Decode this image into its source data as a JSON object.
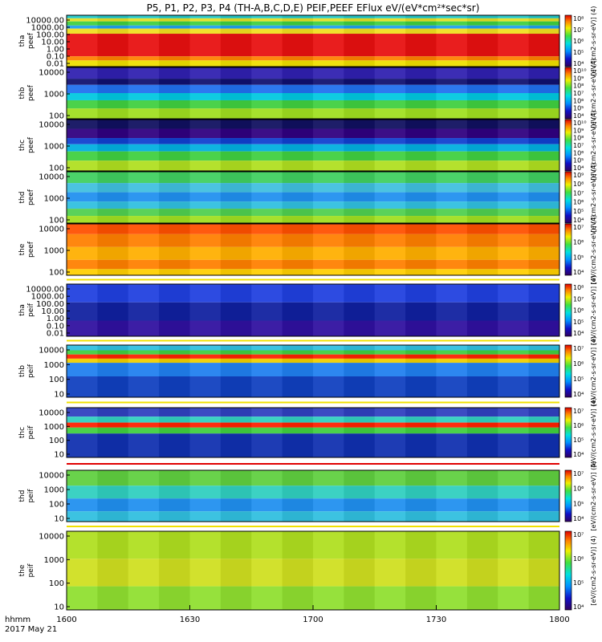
{
  "chart_data": {
    "type": "heatmap",
    "title": "P5, P1, P2, P3, P4 (TH-A,B,C,D,E) PEIF,PEEF EFlux eV/(eV*cm²*sec*sr)",
    "x_label_line1": "hhmm",
    "x_label_line2": "2017 May 21",
    "x_range": [
      "1600",
      "1800"
    ],
    "x_ticks": [
      "1600",
      "1630",
      "1700",
      "1730",
      "1800"
    ],
    "colorbar_label": "[eV/(cm2-s-sr-eV)]",
    "panels": [
      {
        "id": "a-ion",
        "line1": "tha",
        "line2": "peef",
        "yticks": [
          "10000.00",
          "1000.00",
          "100.00",
          "10.00",
          "1.00",
          "0.10",
          "0.01"
        ],
        "cticks": [
          "10⁸",
          "10⁷",
          "10⁶",
          "10⁵",
          "10⁴"
        ],
        "unit": "[eV/(cm2-s-sr-eV)] (4)"
      },
      {
        "id": "b-ion",
        "line1": "thb",
        "line2": "peef",
        "yticks": [
          "10000",
          "1000",
          "100"
        ],
        "cticks": [
          "10¹⁰",
          "10⁹",
          "10⁸",
          "10⁷",
          "10⁶",
          "10⁵",
          "10⁴"
        ],
        "unit": "[eV/(cm2-s-sr-eV)] (4)"
      },
      {
        "id": "c-ion",
        "line1": "thc",
        "line2": "peef",
        "yticks": [
          "10000",
          "1000",
          "100"
        ],
        "cticks": [
          "10¹⁰",
          "10⁹",
          "10⁸",
          "10⁷",
          "10⁶",
          "10⁵",
          "10⁴"
        ],
        "unit": "[eV/(cm2-s-sr-eV)] (4)"
      },
      {
        "id": "d-ion",
        "line1": "thd",
        "line2": "peef",
        "yticks": [
          "10000",
          "1000",
          "100"
        ],
        "cticks": [
          "10⁹",
          "10⁸",
          "10⁷",
          "10⁶",
          "10⁵",
          "10⁴"
        ],
        "unit": "[eV/(cm2-s-sr-eV)] (4)"
      },
      {
        "id": "e-ion",
        "line1": "the",
        "line2": "peef",
        "yticks": [
          "10000",
          "1000",
          "100"
        ],
        "cticks": [
          "10⁷",
          "10⁶",
          "10⁵",
          "10⁴"
        ],
        "unit": "[eV/(cm2-s-sr-eV)] (4)"
      },
      {
        "id": "a-elec",
        "line1": "tha",
        "line2": "peif",
        "yticks": [
          "10000.00",
          "1000.00",
          "100.00",
          "10.00",
          "1.00",
          "0.10",
          "0.01"
        ],
        "cticks": [
          "10⁸",
          "10⁷",
          "10⁶",
          "10⁵",
          "10⁴"
        ],
        "unit": "[eV/(cm2-s-sr-eV)] (4)"
      },
      {
        "id": "b-elec",
        "line1": "thb",
        "line2": "peif",
        "yticks": [
          "10000",
          "1000",
          "100",
          "10"
        ],
        "cticks": [
          "10⁷",
          "10⁶",
          "10⁵",
          "10⁴"
        ],
        "unit": "[eV/(cm2-s-sr-eV)] (4)"
      },
      {
        "id": "c-elec",
        "line1": "thc",
        "line2": "peif",
        "yticks": [
          "10000",
          "1000",
          "100",
          "10"
        ],
        "cticks": [
          "10⁷",
          "10⁶",
          "10⁵",
          "10⁴"
        ],
        "unit": "[eV/(cm2-s-sr-eV)] (4)"
      },
      {
        "id": "d-elec",
        "line1": "thd",
        "line2": "peif",
        "yticks": [
          "10000",
          "1000",
          "100",
          "10"
        ],
        "cticks": [
          "10⁷",
          "10⁶",
          "10⁵",
          "10⁴"
        ],
        "unit": "[eV/(cm2-s-sr-eV)] (4)"
      },
      {
        "id": "e-elec",
        "line1": "the",
        "line2": "peif",
        "yticks": [
          "10000",
          "1000",
          "100",
          "10"
        ],
        "cticks": [
          "10⁷",
          "10⁶",
          "10⁵",
          "10⁴"
        ],
        "unit": "[eV/(cm2-s-sr-eV)] (4)"
      }
    ]
  }
}
